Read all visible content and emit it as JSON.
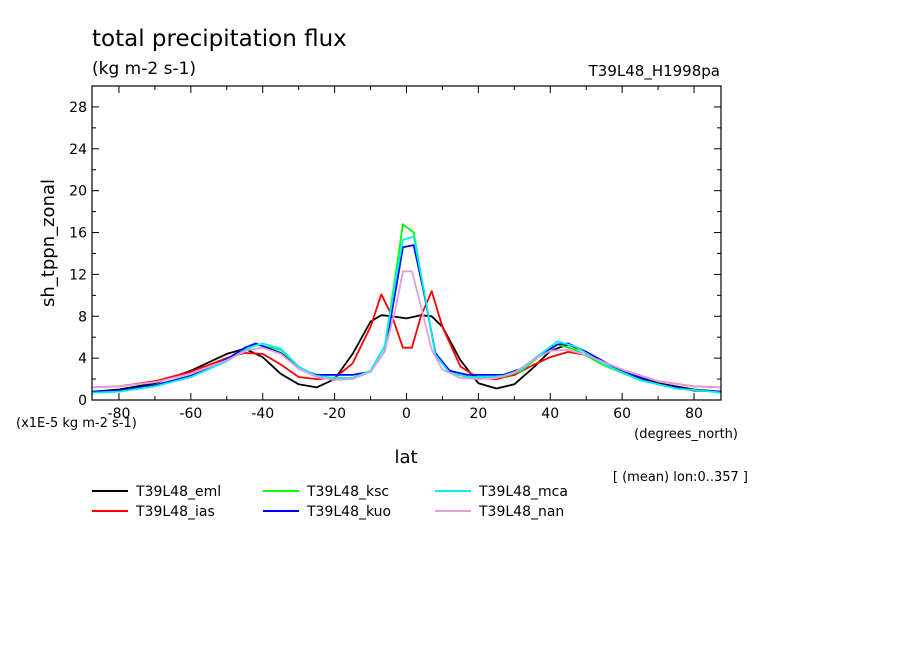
{
  "chart_data": {
    "type": "line",
    "title": "total precipitation flux",
    "subtitle": "(kg m-2 s-1)",
    "run_tag": "T39L48_H1998pa",
    "xlabel": "lat",
    "xunits": "(degrees_north)",
    "ylabel": "sh_tppn_zonal",
    "yscale_note": "(x1E-5 kg m-2 s-1)",
    "footnote": "[ (mean) lon:0..357 ]",
    "xlim": [
      -87.5,
      87.5
    ],
    "ylim": [
      0,
      30
    ],
    "xticks": [
      -80,
      -60,
      -40,
      -20,
      0,
      20,
      40,
      60,
      80
    ],
    "xtick_labels": [
      "-80",
      "-60",
      "-40",
      "-20",
      "0",
      "20",
      "40",
      "60",
      "80"
    ],
    "yticks": [
      0,
      4,
      8,
      12,
      16,
      20,
      24,
      28
    ],
    "ytick_labels": [
      "0",
      "4",
      "8",
      "12",
      "16",
      "20",
      "24",
      "28"
    ],
    "legend_placement": "below",
    "series": [
      {
        "name": "T39L48_eml",
        "color": "#000000",
        "x": [
          -87.5,
          -80,
          -70,
          -60,
          -50,
          -45,
          -40,
          -35,
          -30,
          -25,
          -20,
          -15,
          -10,
          -7,
          -4,
          0,
          4,
          7,
          10,
          15,
          20,
          25,
          30,
          35,
          40,
          45,
          50,
          60,
          70,
          80,
          87.5
        ],
        "y": [
          0.8,
          1.0,
          1.6,
          2.8,
          4.4,
          4.9,
          4.1,
          2.5,
          1.5,
          1.2,
          2.0,
          4.4,
          7.5,
          8.1,
          8.0,
          7.8,
          8.1,
          8.0,
          7.0,
          3.8,
          1.6,
          1.1,
          1.5,
          3.0,
          4.7,
          5.3,
          4.6,
          2.7,
          1.6,
          1.0,
          0.8
        ]
      },
      {
        "name": "T39L48_ias",
        "color": "#ff0000",
        "x": [
          -87.5,
          -80,
          -70,
          -60,
          -50,
          -45,
          -40,
          -35,
          -30,
          -25,
          -20,
          -15,
          -10,
          -7,
          -4,
          -1,
          1.5,
          4,
          7,
          10,
          15,
          20,
          25,
          30,
          35,
          40,
          45,
          50,
          60,
          70,
          80,
          87.5
        ],
        "y": [
          1.2,
          1.3,
          1.8,
          2.7,
          4.0,
          4.5,
          4.4,
          3.4,
          2.2,
          2.0,
          2.1,
          3.5,
          7.0,
          10.1,
          8.0,
          5.0,
          5.0,
          8.0,
          10.4,
          7.0,
          3.2,
          2.1,
          2.0,
          2.4,
          3.3,
          4.1,
          4.6,
          4.3,
          2.9,
          1.8,
          1.3,
          1.2
        ]
      },
      {
        "name": "T39L48_ksc",
        "color": "#00ff00",
        "x": [
          -87.5,
          -80,
          -70,
          -60,
          -50,
          -42,
          -35,
          -30,
          -25,
          -20,
          -15,
          -10,
          -6,
          -3,
          -1,
          2,
          5,
          8,
          12,
          17,
          22,
          27,
          32,
          37,
          42,
          47,
          55,
          65,
          75,
          85,
          87.5
        ],
        "y": [
          0.7,
          0.8,
          1.4,
          2.3,
          3.8,
          5.3,
          4.8,
          3.0,
          2.2,
          2.1,
          2.1,
          2.8,
          5.2,
          12.0,
          16.8,
          16.0,
          10.0,
          4.5,
          2.6,
          2.2,
          2.2,
          2.2,
          2.8,
          4.2,
          5.3,
          4.8,
          3.3,
          1.9,
          1.1,
          0.8,
          0.7
        ]
      },
      {
        "name": "T39L48_kuo",
        "color": "#0000ff",
        "x": [
          -87.5,
          -80,
          -70,
          -60,
          -50,
          -45,
          -42,
          -35,
          -30,
          -25,
          -20,
          -15,
          -10,
          -6,
          -3,
          -1,
          2,
          5,
          8,
          12,
          17,
          22,
          27,
          32,
          37,
          42,
          45,
          50,
          60,
          70,
          80,
          87.5
        ],
        "y": [
          0.8,
          0.9,
          1.4,
          2.3,
          3.9,
          5.0,
          5.4,
          4.5,
          3.0,
          2.4,
          2.4,
          2.4,
          2.7,
          4.7,
          10.5,
          14.6,
          14.8,
          10.0,
          4.5,
          2.8,
          2.4,
          2.4,
          2.4,
          3.0,
          4.3,
          5.3,
          5.4,
          4.6,
          2.7,
          1.5,
          0.9,
          0.8
        ]
      },
      {
        "name": "T39L48_mca",
        "color": "#00f0f0",
        "x": [
          -87.5,
          -80,
          -70,
          -60,
          -50,
          -44,
          -40,
          -35,
          -30,
          -25,
          -20,
          -15,
          -10,
          -6,
          -3,
          -1,
          2,
          5,
          8,
          12,
          17,
          22,
          27,
          32,
          37,
          42,
          47,
          55,
          65,
          75,
          85,
          87.5
        ],
        "y": [
          0.7,
          0.8,
          1.3,
          2.2,
          3.7,
          5.0,
          5.4,
          4.9,
          3.2,
          2.3,
          2.1,
          2.1,
          2.8,
          5.2,
          11.5,
          15.3,
          15.6,
          10.2,
          4.3,
          2.6,
          2.2,
          2.2,
          2.3,
          2.9,
          4.3,
          5.6,
          5.1,
          3.4,
          1.9,
          1.1,
          0.8,
          0.7
        ]
      },
      {
        "name": "T39L48_nan",
        "color": "#e0a0e0",
        "x": [
          -87.5,
          -80,
          -70,
          -60,
          -50,
          -44,
          -40,
          -35,
          -30,
          -25,
          -20,
          -15,
          -10,
          -6,
          -3,
          -1,
          1.5,
          4,
          7,
          10,
          15,
          20,
          25,
          30,
          35,
          40,
          45,
          50,
          60,
          70,
          80,
          87.5
        ],
        "y": [
          1.2,
          1.3,
          1.7,
          2.5,
          3.8,
          4.8,
          5.0,
          4.4,
          3.0,
          2.2,
          1.9,
          2.0,
          2.7,
          4.7,
          8.8,
          12.3,
          12.3,
          9.0,
          4.8,
          2.9,
          2.1,
          2.0,
          2.1,
          2.6,
          3.8,
          4.7,
          4.8,
          4.3,
          2.9,
          1.8,
          1.3,
          1.2
        ]
      }
    ]
  }
}
